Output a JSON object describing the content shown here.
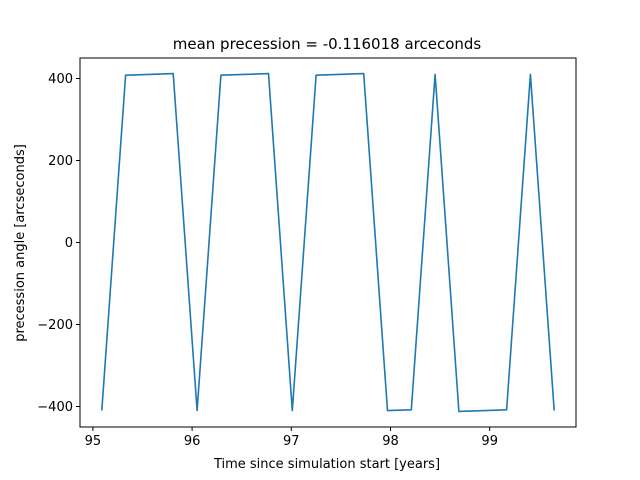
{
  "chart_data": {
    "type": "line",
    "title": "mean precession = -0.116018 arceconds",
    "xlabel": "Time since simulation start [years]",
    "ylabel": "precession angle [arcseconds]",
    "xlim": [
      94.87,
      99.87
    ],
    "ylim": [
      -450,
      450
    ],
    "grid": false,
    "line_color": "#1f77b4",
    "x_ticks": [
      {
        "value": 95,
        "label": "95"
      },
      {
        "value": 96,
        "label": "96"
      },
      {
        "value": 97,
        "label": "97"
      },
      {
        "value": 98,
        "label": "98"
      },
      {
        "value": 99,
        "label": "99"
      }
    ],
    "y_ticks": [
      {
        "value": -400,
        "label": "−400"
      },
      {
        "value": -200,
        "label": "−200"
      },
      {
        "value": 0,
        "label": "0"
      },
      {
        "value": 200,
        "label": "200"
      },
      {
        "value": 400,
        "label": "400"
      }
    ],
    "series": [
      {
        "x": [
          95.09,
          95.33,
          95.81,
          96.05,
          96.29,
          96.77,
          97.01,
          97.25,
          97.73,
          97.97,
          98.21,
          98.45,
          98.69,
          99.17,
          99.41,
          99.65
        ],
        "y": [
          -410,
          408,
          412,
          -410,
          408,
          412,
          -410,
          408,
          412,
          -410,
          -408,
          410,
          -412,
          -408,
          410,
          -410
        ]
      }
    ]
  }
}
